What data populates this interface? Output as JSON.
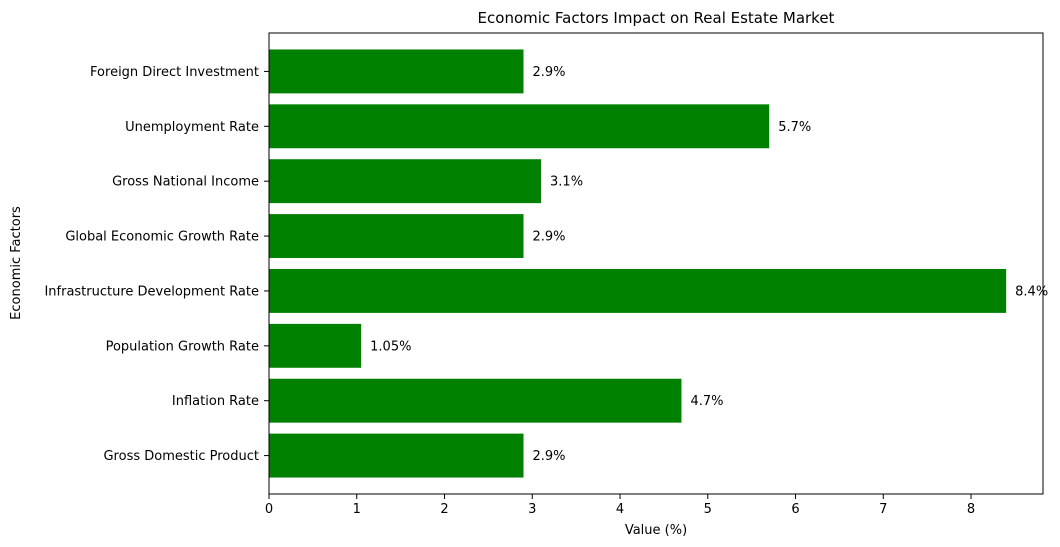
{
  "chart_data": {
    "type": "bar",
    "orientation": "horizontal",
    "title": "Economic Factors Impact on Real Estate Market",
    "xlabel": "Value (%)",
    "ylabel": "Economic Factors",
    "categories": [
      "Gross Domestic Product",
      "Inflation Rate",
      "Population Growth Rate",
      "Infrastructure Development Rate",
      "Global Economic Growth Rate",
      "Gross National Income",
      "Unemployment Rate",
      "Foreign Direct Investment"
    ],
    "values": [
      2.9,
      4.7,
      1.05,
      8.4,
      2.9,
      3.1,
      5.7,
      2.9
    ],
    "data_labels": [
      "2.9%",
      "4.7%",
      "1.05%",
      "8.4%",
      "2.9%",
      "3.1%",
      "5.7%",
      "2.9%"
    ],
    "xlim": [
      0,
      8.82
    ],
    "xticks": [
      0,
      1,
      2,
      3,
      4,
      5,
      6,
      7,
      8
    ],
    "bar_color": "#008000",
    "grid": false
  }
}
